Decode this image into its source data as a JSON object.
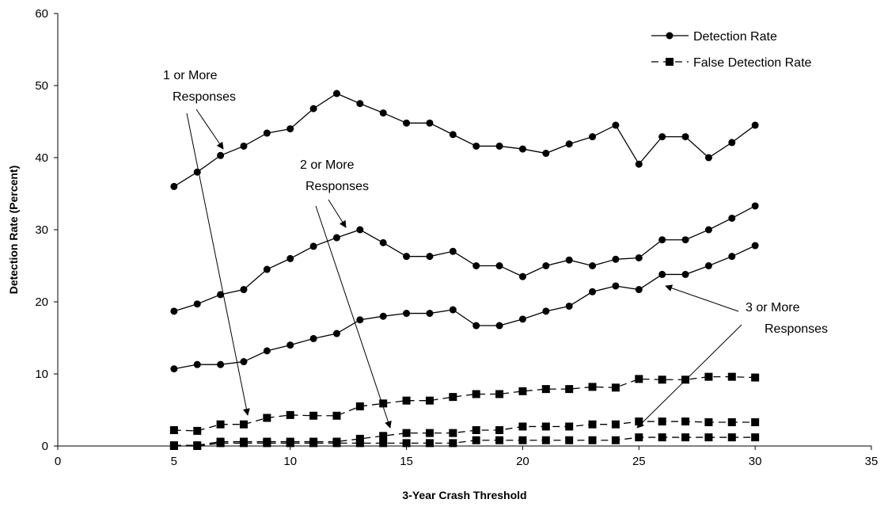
{
  "chart_data": {
    "type": "line",
    "xlabel": "3-Year Crash Threshold",
    "ylabel": "Detection Rate (Percent)",
    "xlim": [
      0,
      35
    ],
    "ylim": [
      0,
      60
    ],
    "x_ticks": [
      "0",
      "5",
      "10",
      "15",
      "20",
      "25",
      "30",
      "35"
    ],
    "y_ticks": [
      "0",
      "10",
      "20",
      "30",
      "40",
      "50",
      "60"
    ],
    "grid": false,
    "legend_position": "top-right",
    "legend": [
      {
        "label": "Detection Rate",
        "style": "solid",
        "marker": "circle"
      },
      {
        "label": "False Detection Rate",
        "style": "dashed",
        "marker": "square"
      }
    ],
    "x": [
      5,
      6,
      7,
      8,
      9,
      10,
      11,
      12,
      13,
      14,
      15,
      16,
      17,
      18,
      19,
      20,
      21,
      22,
      23,
      24,
      25,
      26,
      27,
      28,
      29,
      30
    ],
    "series": [
      {
        "group": "1 or More Responses",
        "metric": "Detection Rate",
        "style": "solid",
        "marker": "circle",
        "values": [
          36.0,
          38.0,
          40.3,
          41.6,
          43.4,
          44.0,
          46.8,
          48.9,
          47.5,
          46.2,
          44.8,
          44.8,
          43.2,
          41.6,
          41.6,
          41.2,
          40.6,
          41.9,
          42.9,
          44.5,
          39.1,
          42.9,
          42.9,
          40.0,
          42.1,
          44.5
        ]
      },
      {
        "group": "2 or More Responses",
        "metric": "Detection Rate",
        "style": "solid",
        "marker": "circle",
        "values": [
          18.7,
          19.7,
          21.0,
          21.7,
          24.5,
          26.0,
          27.7,
          28.9,
          30.0,
          28.2,
          26.3,
          26.3,
          27.0,
          25.0,
          25.0,
          23.5,
          25.0,
          25.8,
          25.0,
          25.9,
          26.1,
          28.6,
          28.6,
          30.0,
          31.6,
          33.3
        ]
      },
      {
        "group": "3 or More Responses",
        "metric": "Detection Rate",
        "style": "solid",
        "marker": "circle",
        "values": [
          10.7,
          11.3,
          11.3,
          11.7,
          13.2,
          14.0,
          14.9,
          15.6,
          17.5,
          18.0,
          18.4,
          18.4,
          18.9,
          16.7,
          16.7,
          17.6,
          18.7,
          19.4,
          21.4,
          22.2,
          21.7,
          23.8,
          23.8,
          25.0,
          26.3,
          27.8
        ]
      },
      {
        "group": "1 or More Responses",
        "metric": "False Detection Rate",
        "style": "dashed",
        "marker": "square",
        "values": [
          2.2,
          2.1,
          3.0,
          3.0,
          3.9,
          4.3,
          4.2,
          4.2,
          5.5,
          5.9,
          6.3,
          6.3,
          6.8,
          7.2,
          7.2,
          7.6,
          7.9,
          7.9,
          8.2,
          8.1,
          9.3,
          9.2,
          9.2,
          9.6,
          9.6,
          9.5
        ]
      },
      {
        "group": "2 or More Responses",
        "metric": "False Detection Rate",
        "style": "dashed",
        "marker": "square",
        "values": [
          0.1,
          0.1,
          0.6,
          0.6,
          0.6,
          0.6,
          0.6,
          0.6,
          1.0,
          1.4,
          1.8,
          1.8,
          1.8,
          2.2,
          2.2,
          2.7,
          2.7,
          2.7,
          3.0,
          3.0,
          3.4,
          3.4,
          3.4,
          3.3,
          3.3,
          3.3
        ]
      },
      {
        "group": "3 or More Responses",
        "metric": "False Detection Rate",
        "style": "dashed",
        "marker": "square",
        "values": [
          0.0,
          0.0,
          0.4,
          0.4,
          0.4,
          0.4,
          0.4,
          0.4,
          0.4,
          0.4,
          0.4,
          0.4,
          0.4,
          0.8,
          0.8,
          0.8,
          0.8,
          0.8,
          0.8,
          0.8,
          1.2,
          1.2,
          1.2,
          1.2,
          1.2,
          1.2
        ]
      }
    ],
    "annotations": [
      {
        "lines": [
          "1 or More",
          "Responses"
        ]
      },
      {
        "lines": [
          "2 or More",
          "Responses"
        ]
      },
      {
        "lines": [
          "3 or More",
          "Responses"
        ]
      }
    ]
  }
}
